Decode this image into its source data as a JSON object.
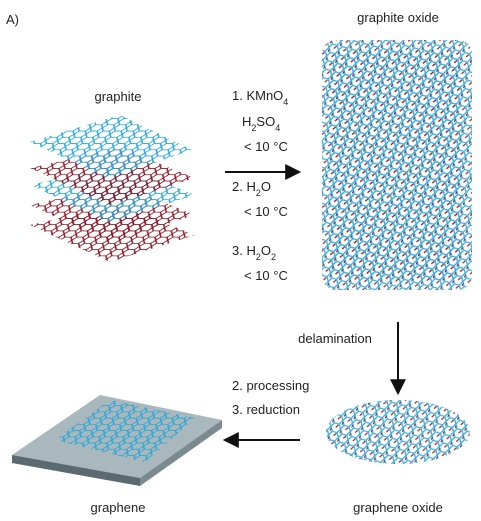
{
  "panel_label": "A)",
  "labels": {
    "graphite": "graphite",
    "graphite_oxide": "graphite oxide",
    "delamination": "delamination",
    "graphene_oxide": "graphene oxide",
    "graphene": "graphene"
  },
  "oxidation_steps": [
    [
      "1. KMnO",
      "4"
    ],
    [
      "H",
      "2",
      "SO",
      "4"
    ],
    [
      "< 10 °C"
    ],
    [
      "2. H",
      "2",
      "O"
    ],
    [
      "< 10 °C"
    ],
    [
      "3. H",
      "2",
      "O",
      "2"
    ],
    [
      "< 10 °C"
    ]
  ],
  "reduction_steps": [
    "2. processing",
    "3. reduction"
  ]
}
